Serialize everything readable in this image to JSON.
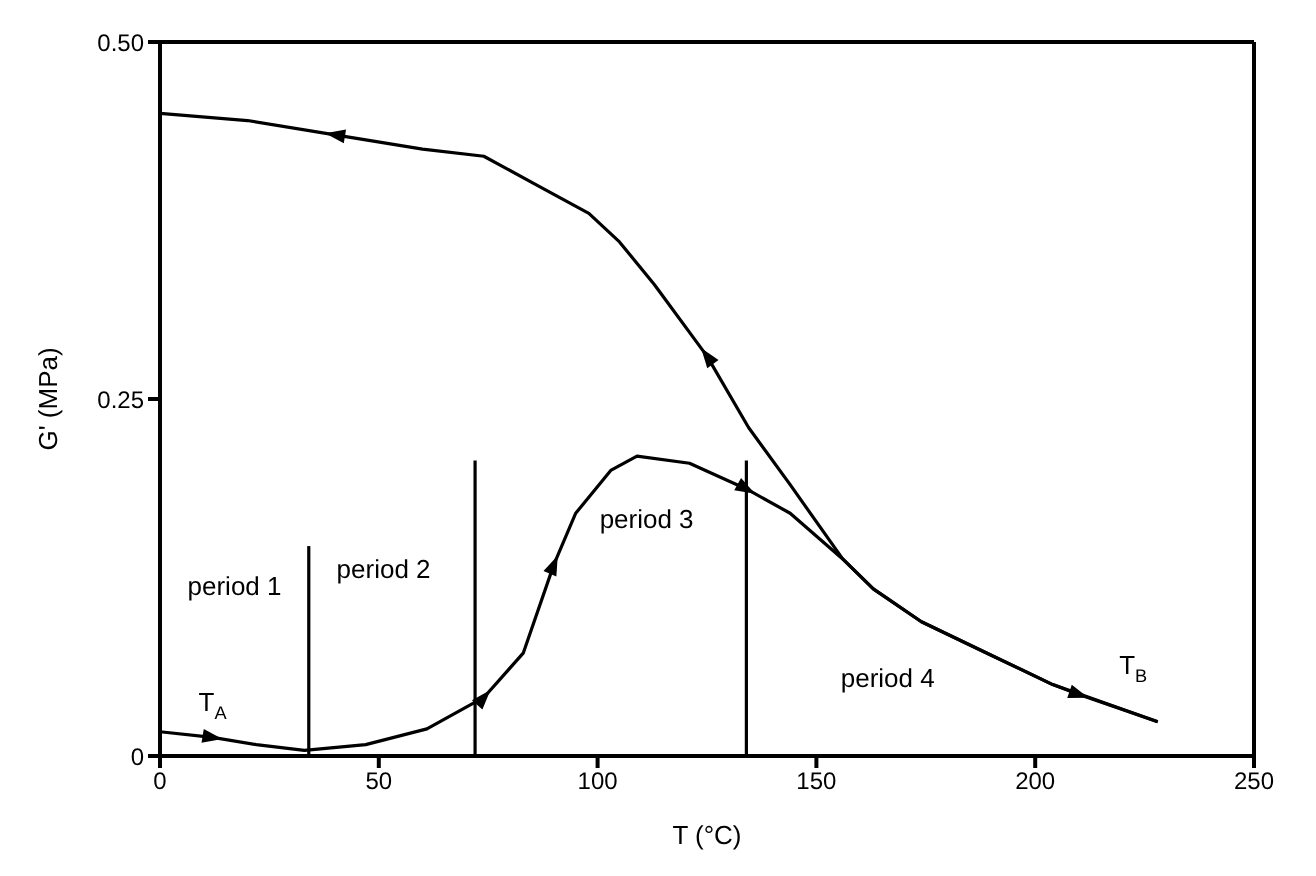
{
  "chart_data": {
    "type": "line",
    "xlabel": "T (°C)",
    "ylabel": "G' (MPa)",
    "xlim": [
      0,
      250
    ],
    "xticks": [
      0,
      50,
      100,
      150,
      200,
      250
    ],
    "ylim": [
      0,
      0.5
    ],
    "yticks": [
      {
        "value": 0,
        "label": "0"
      },
      {
        "value": 0.25,
        "label": "0.25"
      },
      {
        "value": 0.5,
        "label": "0.50"
      }
    ],
    "marker": "none",
    "line_style": "solid",
    "series": [
      {
        "color": "#000000",
        "x": [
          228,
          204,
          189,
          174,
          163,
          156,
          144,
          134.5,
          125,
          113,
          105,
          98,
          86,
          74,
          60,
          40,
          20,
          0
        ],
        "values": [
          0.024,
          0.05,
          0.072,
          0.094,
          0.117,
          0.138,
          0.19,
          0.23,
          0.28,
          0.33,
          0.36,
          0.38,
          0.4,
          0.42,
          0.425,
          0.435,
          0.445,
          0.45
        ]
      },
      {
        "color": "#000000",
        "x": [
          0,
          12,
          22,
          33,
          47,
          61,
          74,
          83,
          90,
          95,
          103,
          109,
          121,
          134,
          144,
          156,
          163,
          174,
          189,
          204,
          210,
          228
        ],
        "values": [
          0.017,
          0.013,
          0.008,
          0.004,
          0.008,
          0.019,
          0.041,
          0.072,
          0.134,
          0.17,
          0.2,
          0.21,
          0.205,
          0.187,
          0.17,
          0.138,
          0.117,
          0.094,
          0.072,
          0.05,
          0.043,
          0.024
        ]
      },
      {
        "color": "#000000",
        "x": [
          34,
          34
        ],
        "values": [
          0,
          0.147
        ]
      },
      {
        "color": "#000000",
        "x": [
          72,
          72
        ],
        "values": [
          0,
          0.207
        ]
      },
      {
        "color": "#000000",
        "x": [
          134,
          134
        ],
        "values": [
          0,
          0.207
        ]
      }
    ],
    "annotations": [
      "period 1",
      "period 2",
      "period 3",
      "period 4",
      "T$_{A}$",
      "T$_{B}$"
    ]
  }
}
